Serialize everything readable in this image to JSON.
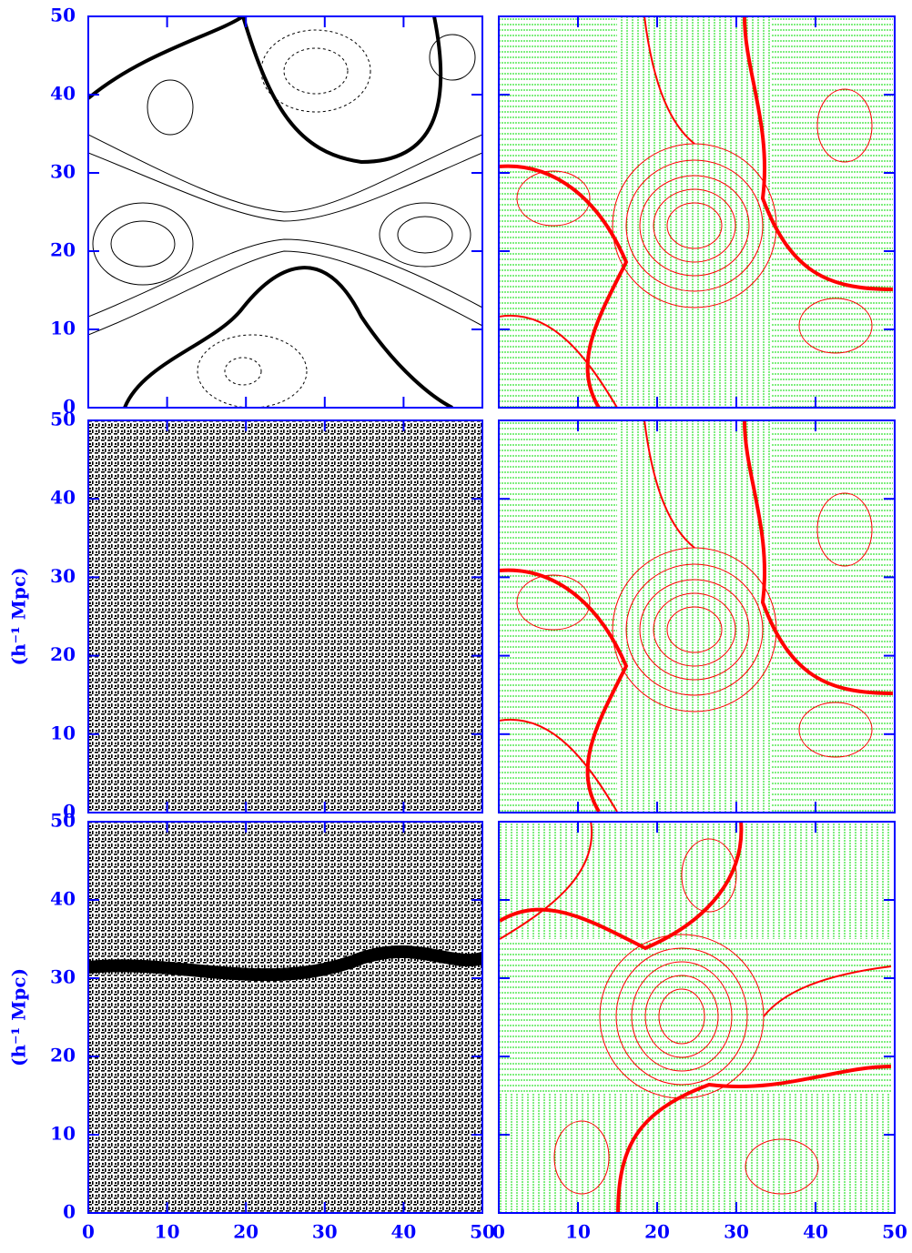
{
  "chart_data": [
    {
      "type": "contour",
      "xlim": [
        0,
        50
      ],
      "ylim": [
        0,
        50
      ],
      "xticks": [
        0,
        10,
        20,
        30,
        40,
        50
      ],
      "yticks": [
        0,
        10,
        20,
        30,
        40,
        50
      ]
    },
    {
      "type": "contour",
      "xlim": [
        0,
        50
      ],
      "ylim": [
        0,
        50
      ],
      "xticks": [
        0,
        10,
        20,
        30,
        40,
        50
      ],
      "yticks": [
        0,
        10,
        20,
        30,
        40,
        50
      ]
    },
    {
      "type": "scatter",
      "xlim": [
        0,
        50
      ],
      "ylim": [
        0,
        50
      ],
      "xticks": [
        0,
        10,
        20,
        30,
        40,
        50
      ],
      "yticks": [
        0,
        10,
        20,
        30,
        40,
        50
      ],
      "ylabel": "(h⁻¹ Mpc)"
    },
    {
      "type": "contour",
      "xlim": [
        0,
        50
      ],
      "ylim": [
        0,
        50
      ],
      "xticks": [
        0,
        10,
        20,
        30,
        40,
        50
      ],
      "yticks": [
        0,
        10,
        20,
        30,
        40,
        50
      ]
    },
    {
      "type": "scatter",
      "xlim": [
        0,
        50
      ],
      "ylim": [
        0,
        50
      ],
      "xticks": [
        0,
        10,
        20,
        30,
        40,
        50
      ],
      "yticks": [
        0,
        10,
        20,
        30,
        40,
        50
      ],
      "ylabel": "(h⁻¹ Mpc)"
    },
    {
      "type": "contour",
      "xlim": [
        0,
        50
      ],
      "ylim": [
        0,
        50
      ],
      "xticks": [
        0,
        10,
        20,
        30,
        40,
        50
      ],
      "yticks": [
        0,
        10,
        20,
        30,
        40,
        50
      ]
    }
  ]
}
